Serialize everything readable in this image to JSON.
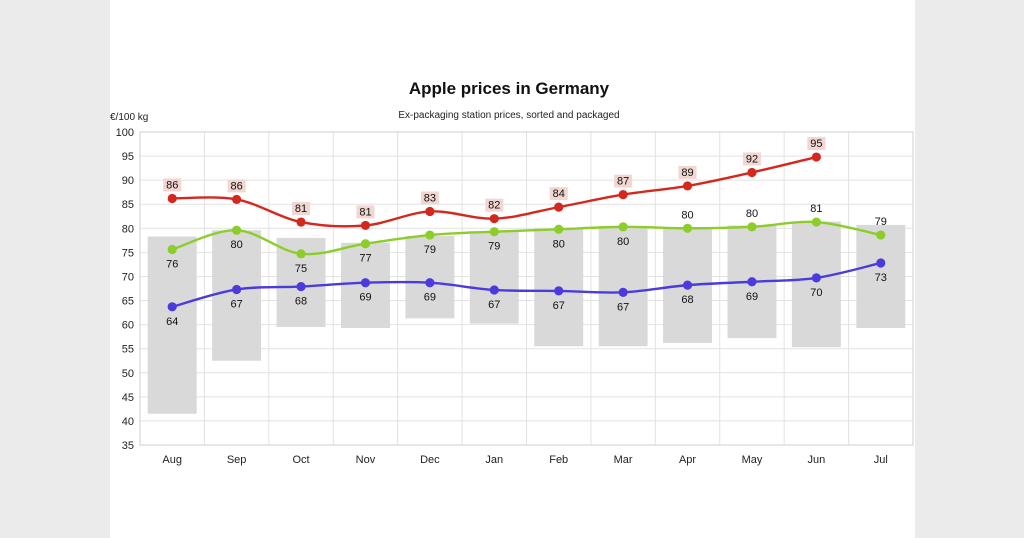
{
  "chart_data": {
    "type": "line",
    "title": "Apple prices in Germany",
    "subtitle": "Ex-packaging station prices, sorted and packaged",
    "ylabel": "€/100 kg",
    "xlabel": "",
    "ylim": [
      35,
      100
    ],
    "yticks": [
      35,
      40,
      45,
      50,
      55,
      60,
      65,
      70,
      75,
      80,
      85,
      90,
      95,
      100
    ],
    "grid": true,
    "categories": [
      "Aug",
      "Sep",
      "Oct",
      "Nov",
      "Dec",
      "Jan",
      "Feb",
      "Mar",
      "Apr",
      "May",
      "Jun",
      "Jul"
    ],
    "range_bars": {
      "color": "#d9d9d9",
      "low": [
        41.5,
        52.5,
        59.5,
        59.3,
        61.3,
        60.2,
        55.5,
        55.5,
        56.2,
        57.2,
        55.3,
        59.3
      ],
      "high": [
        78.3,
        79.6,
        78.0,
        77.0,
        78.4,
        79.4,
        80.0,
        80.4,
        79.9,
        80.6,
        81.4,
        80.7
      ]
    },
    "series": [
      {
        "color": "#d4281e",
        "values": [
          86.2,
          86.0,
          81.3,
          80.6,
          83.5,
          82.0,
          84.4,
          87.0,
          88.8,
          91.6,
          94.8,
          null
        ],
        "labels": [
          "86",
          "86",
          "81",
          "81",
          "83",
          "82",
          "84",
          "87",
          "89",
          "92",
          "95",
          ""
        ],
        "label_pos": "above"
      },
      {
        "color": "#8ccd2a",
        "values": [
          75.6,
          79.6,
          74.7,
          76.8,
          78.6,
          79.3,
          79.8,
          80.3,
          80.0,
          80.3,
          81.3,
          78.6
        ],
        "labels": [
          "76",
          "80",
          "75",
          "77",
          "79",
          "79",
          "80",
          "80",
          "80",
          "80",
          "81",
          "79"
        ],
        "label_pos": [
          "below",
          "below",
          "below",
          "below",
          "below",
          "below",
          "below",
          "below",
          "above",
          "above",
          "above",
          "above"
        ]
      },
      {
        "color": "#4c3bdc",
        "values": [
          63.7,
          67.3,
          67.9,
          68.7,
          68.7,
          67.2,
          67.0,
          66.7,
          68.2,
          68.9,
          69.7,
          72.8
        ],
        "labels": [
          "64",
          "67",
          "68",
          "69",
          "69",
          "67",
          "67",
          "67",
          "68",
          "69",
          "70",
          "73"
        ],
        "label_pos": "below"
      }
    ]
  }
}
